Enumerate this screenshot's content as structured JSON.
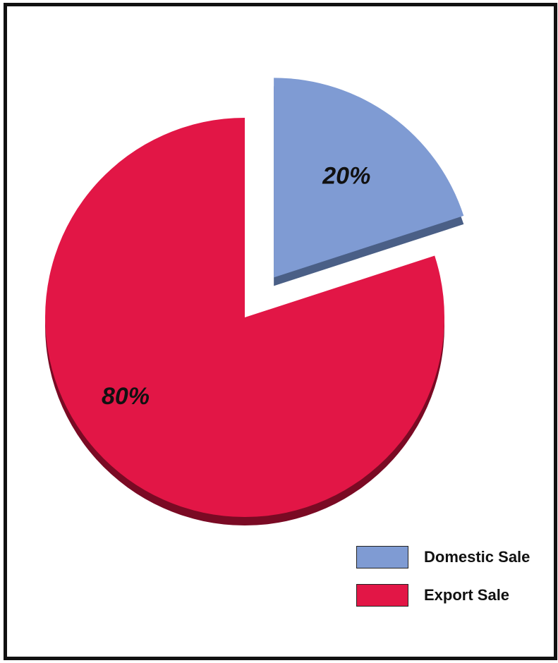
{
  "chart_data": {
    "type": "pie",
    "slices": [
      {
        "label": "Domestic Sale",
        "value": 20,
        "display": "20%",
        "color": "#7f9bd3",
        "shadow": "#4a5f86",
        "exploded": true
      },
      {
        "label": "Export Sale",
        "value": 80,
        "display": "80%",
        "color": "#e21646",
        "shadow": "#7a0a24",
        "exploded": false
      }
    ],
    "legend": {
      "placement": "bottom-right",
      "items": [
        {
          "label": "Domestic Sale",
          "color": "#7f9bd3"
        },
        {
          "label": "Export Sale",
          "color": "#e21646"
        }
      ]
    }
  }
}
